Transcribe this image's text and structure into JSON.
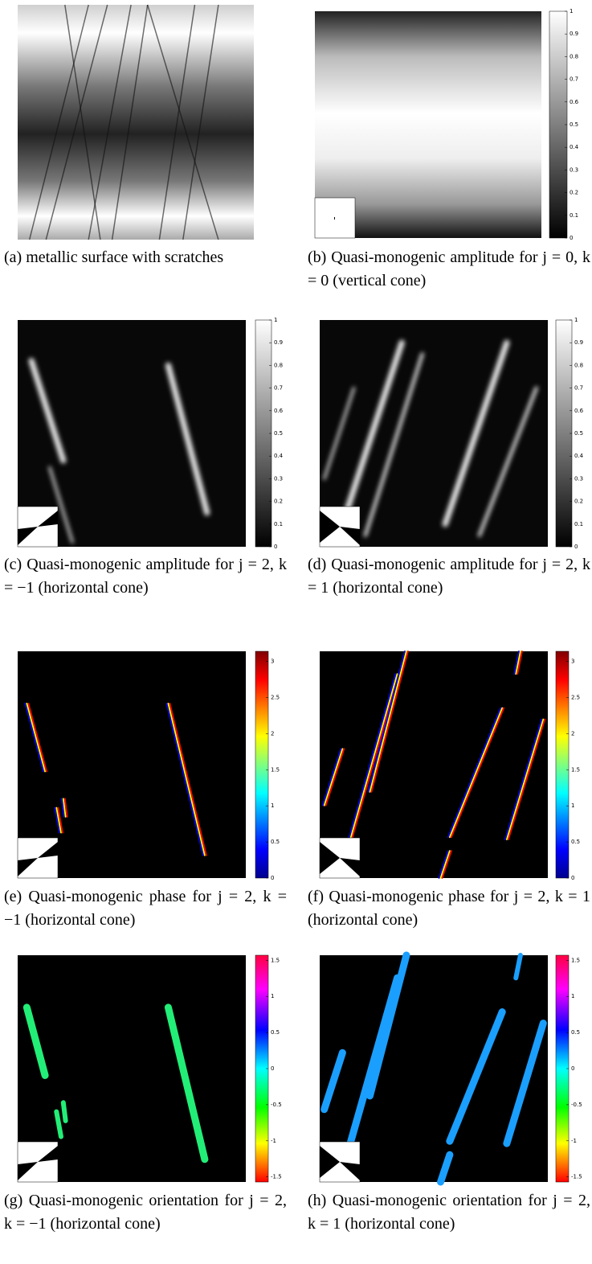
{
  "panels": [
    {
      "caption": "(a) metallic surface with scratches"
    },
    {
      "caption": "(b) Quasi-monogenic amplitude for j = 0, k = 0 (vertical cone)",
      "colorbar": {
        "colormap": "gray",
        "clim": [
          0,
          1
        ],
        "ticks": [
          0,
          0.1,
          0.2,
          0.3,
          0.4,
          0.5,
          0.6,
          0.7,
          0.8,
          0.9,
          1
        ]
      }
    },
    {
      "caption": "(c) Quasi-monogenic amplitude for j = 2, k = −1 (horizontal cone)",
      "colorbar": {
        "colormap": "gray",
        "clim": [
          0,
          1
        ],
        "ticks": [
          0,
          0.1,
          0.2,
          0.3,
          0.4,
          0.5,
          0.6,
          0.7,
          0.8,
          0.9,
          1
        ]
      }
    },
    {
      "caption": "(d) Quasi-monogenic amplitude for j = 2, k = 1 (horizontal cone)",
      "colorbar": {
        "colormap": "gray",
        "clim": [
          0,
          1
        ],
        "ticks": [
          0,
          0.1,
          0.2,
          0.3,
          0.4,
          0.5,
          0.6,
          0.7,
          0.8,
          0.9,
          1
        ]
      }
    },
    {
      "caption": "(e) Quasi-monogenic phase for j = 2, k = −1 (horizontal cone)",
      "colorbar": {
        "colormap": "jet",
        "clim": [
          0,
          3.14
        ],
        "ticks": [
          0,
          0.5,
          1,
          1.5,
          2,
          2.5,
          3
        ]
      }
    },
    {
      "caption": "(f) Quasi-monogenic phase for j = 2, k = 1 (horizontal cone)",
      "colorbar": {
        "colormap": "jet",
        "clim": [
          0,
          3.14
        ],
        "ticks": [
          0,
          0.5,
          1,
          1.5,
          2,
          2.5,
          3
        ]
      }
    },
    {
      "caption": "(g) Quasi-monogenic orientation for j = 2, k = −1 (horizontal cone)",
      "colorbar": {
        "colormap": "hsv",
        "clim": [
          -1.57,
          1.57
        ],
        "ticks": [
          -1.5,
          -1,
          -0.5,
          0,
          0.5,
          1,
          1.5
        ]
      }
    },
    {
      "caption": "(h) Quasi-monogenic orientation for j = 2, k = 1 (horizontal cone)",
      "colorbar": {
        "colormap": "hsv",
        "clim": [
          -1.57,
          1.57
        ],
        "ticks": [
          -1.5,
          -1,
          -0.5,
          0,
          0.5,
          1,
          1.5
        ]
      }
    }
  ]
}
